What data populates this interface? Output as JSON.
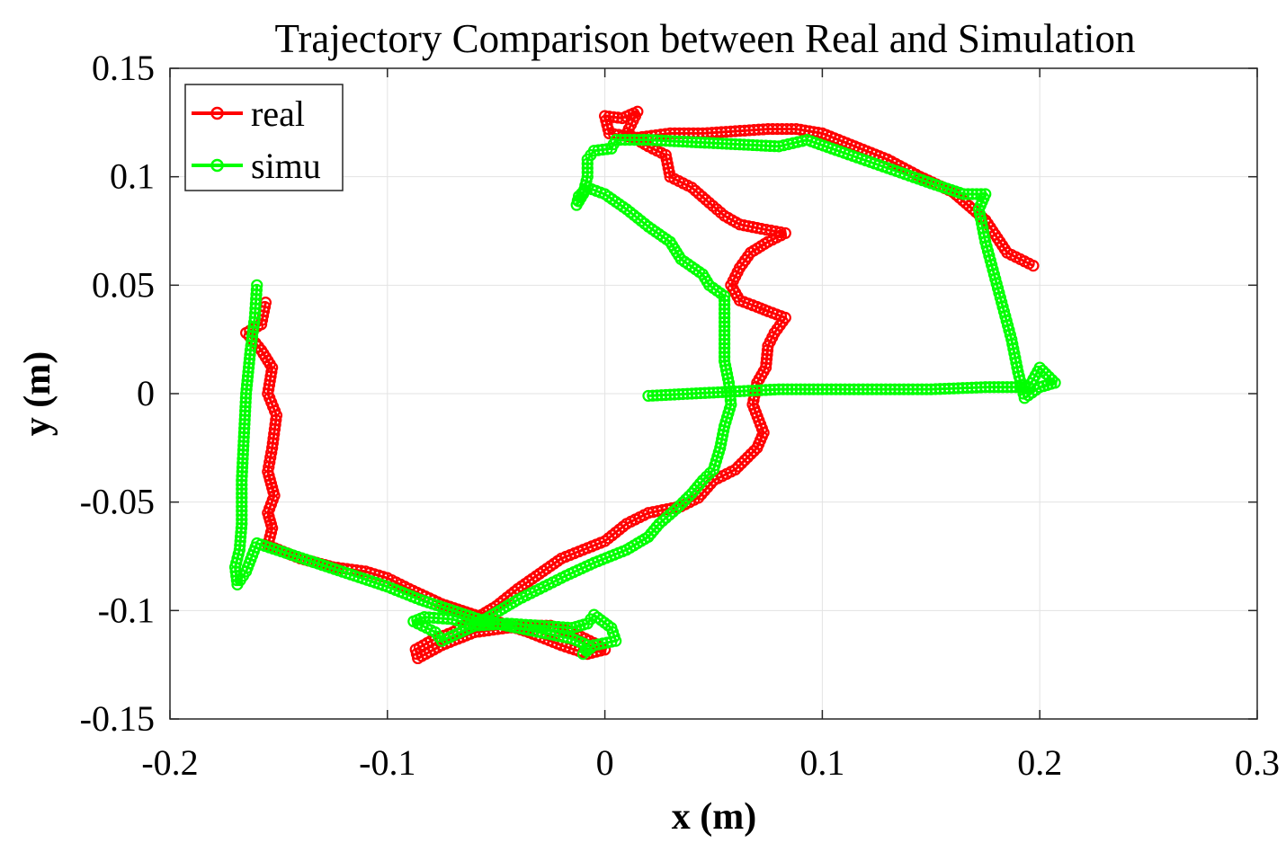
{
  "chart_data": {
    "type": "line",
    "title": "Trajectory Comparison between Real and Simulation",
    "xlabel": "x (m)",
    "ylabel": "y (m)",
    "xlim": [
      -0.2,
      0.3
    ],
    "ylim": [
      -0.15,
      0.15
    ],
    "grid": true,
    "legend_position": "top-left",
    "x_ticks": [
      -0.2,
      -0.1,
      0,
      0.1,
      0.2,
      0.3
    ],
    "x_tick_labels": [
      "-0.2",
      "-0.1",
      "0",
      "0.1",
      "0.2",
      "0.3"
    ],
    "y_ticks": [
      0.15,
      0.1,
      0.05,
      0,
      -0.05,
      -0.1,
      -0.15
    ],
    "y_tick_labels": [
      "0.15",
      "0.1",
      "0.05",
      "0",
      "-0.05",
      "-0.1",
      "-0.15"
    ],
    "series": [
      {
        "name": "real",
        "color": "#ff0000",
        "marker": "circle",
        "points": [
          [
            0.197,
            0.059
          ],
          [
            0.185,
            0.065
          ],
          [
            0.175,
            0.08
          ],
          [
            0.16,
            0.093
          ],
          [
            0.145,
            0.1
          ],
          [
            0.13,
            0.108
          ],
          [
            0.115,
            0.114
          ],
          [
            0.1,
            0.12
          ],
          [
            0.088,
            0.122
          ],
          [
            0.075,
            0.122
          ],
          [
            0.06,
            0.121
          ],
          [
            0.045,
            0.12
          ],
          [
            0.03,
            0.12
          ],
          [
            0.015,
            0.118
          ],
          [
            0.002,
            0.12
          ],
          [
            0.0,
            0.128
          ],
          [
            0.008,
            0.127
          ],
          [
            0.015,
            0.13
          ],
          [
            0.01,
            0.12
          ],
          [
            0.02,
            0.114
          ],
          [
            0.028,
            0.11
          ],
          [
            0.03,
            0.1
          ],
          [
            0.04,
            0.095
          ],
          [
            0.048,
            0.088
          ],
          [
            0.055,
            0.082
          ],
          [
            0.062,
            0.078
          ],
          [
            0.072,
            0.076
          ],
          [
            0.083,
            0.074
          ],
          [
            0.075,
            0.07
          ],
          [
            0.067,
            0.065
          ],
          [
            0.062,
            0.058
          ],
          [
            0.058,
            0.05
          ],
          [
            0.062,
            0.043
          ],
          [
            0.07,
            0.04
          ],
          [
            0.075,
            0.038
          ],
          [
            0.083,
            0.035
          ],
          [
            0.078,
            0.028
          ],
          [
            0.075,
            0.022
          ],
          [
            0.074,
            0.012
          ],
          [
            0.07,
            0.005
          ],
          [
            0.068,
            -0.005
          ],
          [
            0.073,
            -0.018
          ],
          [
            0.07,
            -0.025
          ],
          [
            0.06,
            -0.035
          ],
          [
            0.05,
            -0.04
          ],
          [
            0.043,
            -0.048
          ],
          [
            0.035,
            -0.052
          ],
          [
            0.02,
            -0.055
          ],
          [
            0.01,
            -0.06
          ],
          [
            0.0,
            -0.068
          ],
          [
            -0.01,
            -0.072
          ],
          [
            -0.02,
            -0.076
          ],
          [
            -0.03,
            -0.083
          ],
          [
            -0.04,
            -0.09
          ],
          [
            -0.05,
            -0.098
          ],
          [
            -0.06,
            -0.104
          ],
          [
            -0.07,
            -0.11
          ],
          [
            -0.08,
            -0.114
          ],
          [
            -0.087,
            -0.118
          ],
          [
            -0.086,
            -0.122
          ],
          [
            -0.075,
            -0.116
          ],
          [
            -0.06,
            -0.11
          ],
          [
            -0.045,
            -0.108
          ],
          [
            -0.035,
            -0.107
          ],
          [
            -0.025,
            -0.107
          ],
          [
            -0.015,
            -0.11
          ],
          [
            -0.005,
            -0.115
          ],
          [
            0.0,
            -0.118
          ],
          [
            -0.008,
            -0.12
          ],
          [
            -0.02,
            -0.116
          ],
          [
            -0.035,
            -0.11
          ],
          [
            -0.05,
            -0.105
          ],
          [
            -0.06,
            -0.102
          ],
          [
            -0.075,
            -0.097
          ],
          [
            -0.09,
            -0.09
          ],
          [
            -0.1,
            -0.085
          ],
          [
            -0.11,
            -0.082
          ],
          [
            -0.125,
            -0.08
          ],
          [
            -0.14,
            -0.076
          ],
          [
            -0.15,
            -0.072
          ],
          [
            -0.155,
            -0.07
          ],
          [
            -0.153,
            -0.062
          ],
          [
            -0.155,
            -0.055
          ],
          [
            -0.152,
            -0.047
          ],
          [
            -0.155,
            -0.036
          ],
          [
            -0.153,
            -0.025
          ],
          [
            -0.151,
            -0.01
          ],
          [
            -0.155,
            0.0
          ],
          [
            -0.153,
            0.012
          ],
          [
            -0.158,
            0.02
          ],
          [
            -0.162,
            0.025
          ],
          [
            -0.165,
            0.028
          ],
          [
            -0.158,
            0.032
          ],
          [
            -0.156,
            0.042
          ]
        ]
      },
      {
        "name": "simu",
        "color": "#00ff00",
        "marker": "circle",
        "points": [
          [
            -0.16,
            0.05
          ],
          [
            -0.161,
            0.035
          ],
          [
            -0.163,
            0.02
          ],
          [
            -0.165,
            0.0
          ],
          [
            -0.166,
            -0.02
          ],
          [
            -0.167,
            -0.04
          ],
          [
            -0.167,
            -0.06
          ],
          [
            -0.168,
            -0.072
          ],
          [
            -0.17,
            -0.08
          ],
          [
            -0.169,
            -0.088
          ],
          [
            -0.165,
            -0.082
          ],
          [
            -0.16,
            -0.069
          ],
          [
            -0.145,
            -0.074
          ],
          [
            -0.13,
            -0.079
          ],
          [
            -0.115,
            -0.084
          ],
          [
            -0.1,
            -0.089
          ],
          [
            -0.085,
            -0.095
          ],
          [
            -0.07,
            -0.1
          ],
          [
            -0.055,
            -0.105
          ],
          [
            -0.045,
            -0.107
          ],
          [
            -0.035,
            -0.109
          ],
          [
            -0.025,
            -0.111
          ],
          [
            -0.015,
            -0.113
          ],
          [
            -0.008,
            -0.116
          ],
          [
            -0.01,
            -0.12
          ],
          [
            -0.005,
            -0.116
          ],
          [
            0.005,
            -0.114
          ],
          [
            0.003,
            -0.108
          ],
          [
            -0.005,
            -0.102
          ],
          [
            -0.008,
            -0.106
          ],
          [
            -0.015,
            -0.108
          ],
          [
            -0.03,
            -0.107
          ],
          [
            -0.045,
            -0.106
          ],
          [
            -0.06,
            -0.107
          ],
          [
            -0.07,
            -0.104
          ],
          [
            -0.083,
            -0.103
          ],
          [
            -0.088,
            -0.105
          ],
          [
            -0.078,
            -0.11
          ],
          [
            -0.075,
            -0.114
          ],
          [
            -0.06,
            -0.107
          ],
          [
            -0.05,
            -0.101
          ],
          [
            -0.04,
            -0.095
          ],
          [
            -0.03,
            -0.09
          ],
          [
            -0.018,
            -0.084
          ],
          [
            -0.005,
            -0.078
          ],
          [
            0.01,
            -0.072
          ],
          [
            0.02,
            -0.066
          ],
          [
            0.025,
            -0.06
          ],
          [
            0.033,
            -0.053
          ],
          [
            0.04,
            -0.046
          ],
          [
            0.045,
            -0.04
          ],
          [
            0.05,
            -0.035
          ],
          [
            0.053,
            -0.025
          ],
          [
            0.055,
            -0.015
          ],
          [
            0.058,
            -0.005
          ],
          [
            0.057,
            0.005
          ],
          [
            0.055,
            0.015
          ],
          [
            0.055,
            0.025
          ],
          [
            0.055,
            0.035
          ],
          [
            0.055,
            0.045
          ],
          [
            0.048,
            0.05
          ],
          [
            0.045,
            0.055
          ],
          [
            0.035,
            0.062
          ],
          [
            0.03,
            0.07
          ],
          [
            0.02,
            0.077
          ],
          [
            0.01,
            0.085
          ],
          [
            0.0,
            0.092
          ],
          [
            -0.008,
            0.095
          ],
          [
            -0.012,
            0.091
          ],
          [
            -0.013,
            0.087
          ],
          [
            -0.01,
            0.092
          ],
          [
            -0.008,
            0.1
          ],
          [
            -0.008,
            0.108
          ],
          [
            -0.005,
            0.112
          ],
          [
            0.003,
            0.113
          ],
          [
            0.005,
            0.117
          ],
          [
            0.02,
            0.117
          ],
          [
            0.04,
            0.116
          ],
          [
            0.06,
            0.115
          ],
          [
            0.08,
            0.114
          ],
          [
            0.093,
            0.117
          ],
          [
            0.11,
            0.111
          ],
          [
            0.13,
            0.104
          ],
          [
            0.15,
            0.097
          ],
          [
            0.165,
            0.092
          ],
          [
            0.175,
            0.092
          ],
          [
            0.172,
            0.085
          ],
          [
            0.175,
            0.07
          ],
          [
            0.179,
            0.055
          ],
          [
            0.183,
            0.04
          ],
          [
            0.187,
            0.025
          ],
          [
            0.19,
            0.01
          ],
          [
            0.193,
            -0.002
          ],
          [
            0.2,
            0.003
          ],
          [
            0.207,
            0.005
          ],
          [
            0.2,
            0.012
          ],
          [
            0.195,
            0.003
          ],
          [
            0.175,
            0.003
          ],
          [
            0.15,
            0.002
          ],
          [
            0.125,
            0.002
          ],
          [
            0.1,
            0.002
          ],
          [
            0.08,
            0.002
          ],
          [
            0.06,
            0.001
          ],
          [
            0.04,
            0.0
          ],
          [
            0.02,
            -0.001
          ]
        ]
      }
    ]
  }
}
